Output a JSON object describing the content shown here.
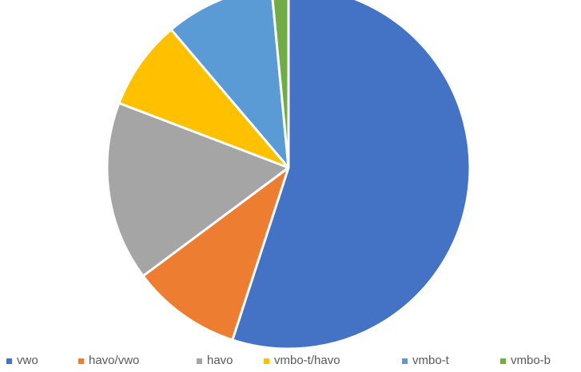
{
  "chart_data": {
    "type": "pie",
    "start_angle_deg": 0,
    "direction": "clockwise",
    "legend_position": "bottom",
    "series": [
      {
        "name": "vwo",
        "value": 55.0,
        "color": "#4472C4"
      },
      {
        "name": "havo/vwo",
        "value": 9.8,
        "color": "#ED7D31"
      },
      {
        "name": "havo",
        "value": 16.0,
        "color": "#A5A5A5"
      },
      {
        "name": "vmbo-t/havo",
        "value": 8.0,
        "color": "#FFC000"
      },
      {
        "name": "vmbo-t",
        "value": 9.7,
        "color": "#5B9BD5"
      },
      {
        "name": "vmbo-b",
        "value": 1.5,
        "color": "#70AD47"
      }
    ]
  }
}
